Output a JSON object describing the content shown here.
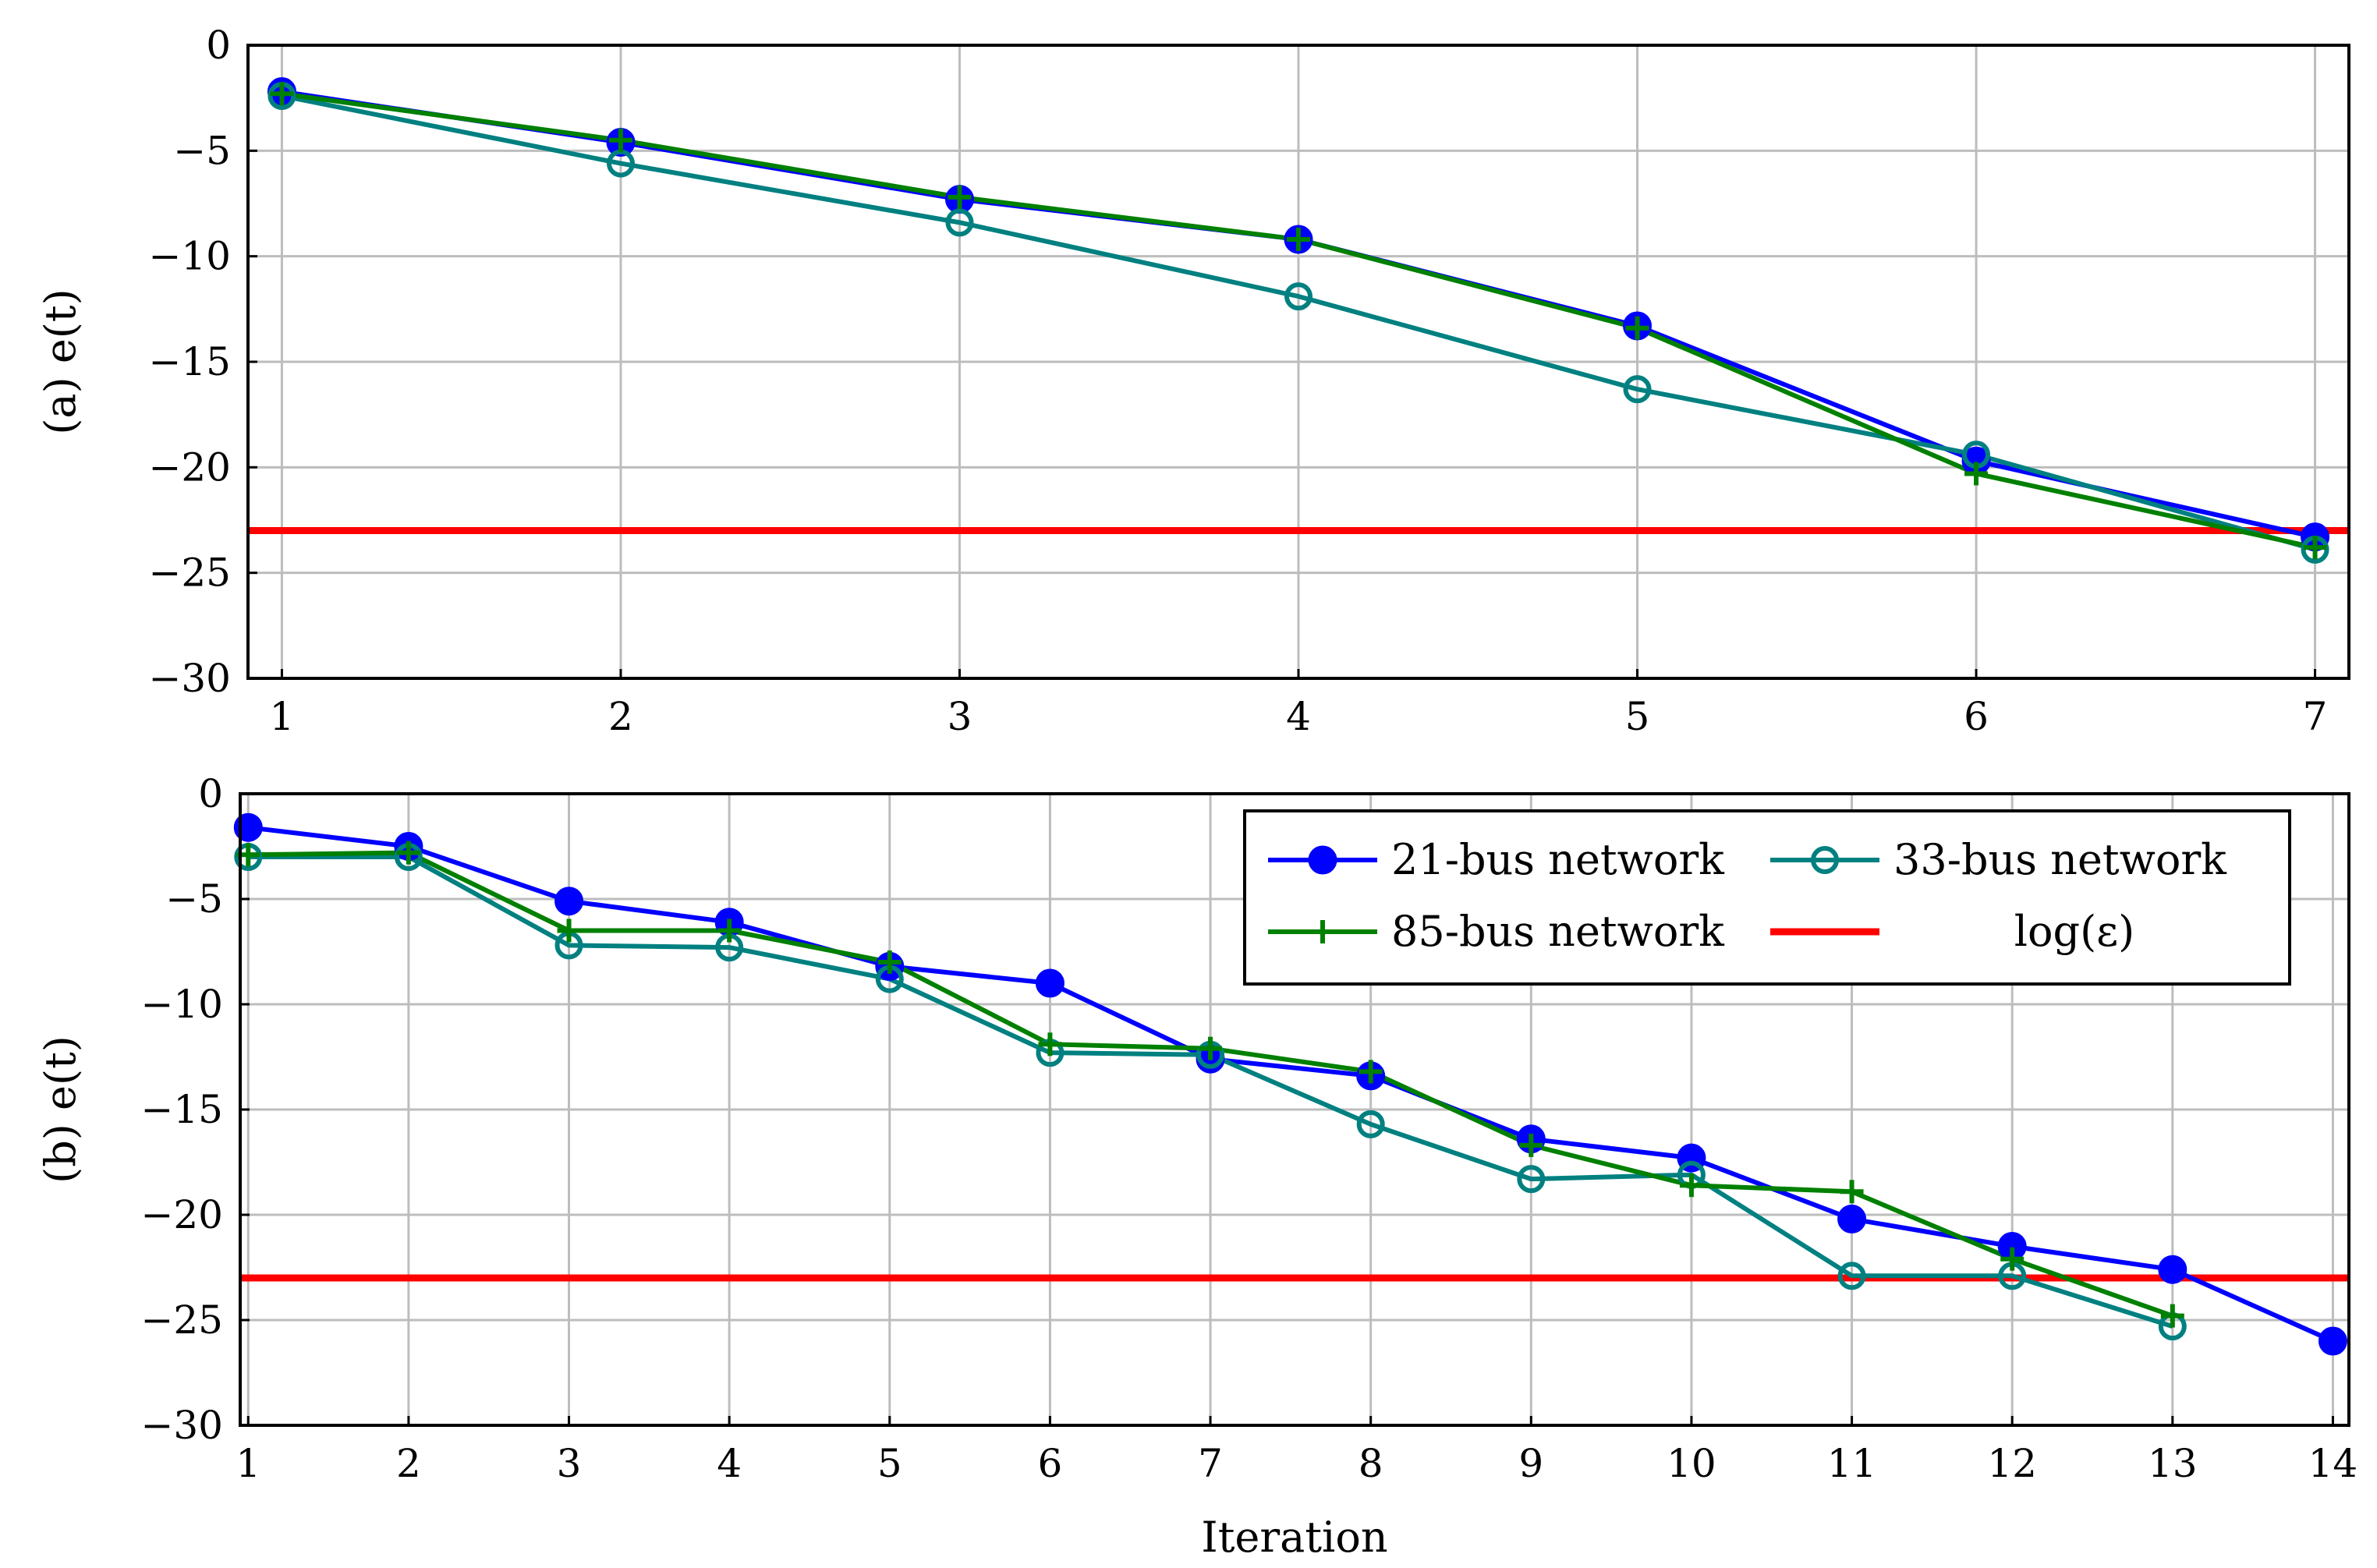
{
  "colors": {
    "bus21": "#0000ff",
    "bus33": "#008080",
    "bus85": "#008000",
    "threshold": "#ff0000",
    "grid": "#bdbdbd"
  },
  "chart_data": [
    {
      "type": "line",
      "ylabel": "(a) e(t)",
      "xlabel": "",
      "x": [
        1,
        2,
        3,
        4,
        5,
        6,
        7
      ],
      "xlim": [
        0.9,
        7.1
      ],
      "ylim": [
        -30,
        0
      ],
      "xticks": [
        "1",
        "2",
        "3",
        "4",
        "5",
        "6",
        "7"
      ],
      "yticks": [
        "0",
        "−5",
        "−10",
        "−15",
        "−20",
        "−25",
        "−30"
      ],
      "grid": true,
      "series": [
        {
          "name": "21-bus network",
          "key": "bus21",
          "marker": "filled-circle",
          "x": [
            1,
            2,
            3,
            4,
            5,
            6,
            7
          ],
          "values": [
            -2.2,
            -4.6,
            -7.3,
            -9.2,
            -13.3,
            -19.7,
            -23.3
          ]
        },
        {
          "name": "33-bus network",
          "key": "bus33",
          "marker": "open-circle",
          "x": [
            1,
            2,
            3,
            4,
            5,
            6,
            7
          ],
          "values": [
            -2.4,
            -5.6,
            -8.4,
            -11.9,
            -16.3,
            -19.4,
            -23.9
          ]
        },
        {
          "name": "85-bus network",
          "key": "bus85",
          "marker": "plus",
          "x": [
            1,
            2,
            3,
            4,
            5,
            6,
            7
          ],
          "values": [
            -2.3,
            -4.5,
            -7.2,
            -9.2,
            -13.4,
            -20.3,
            -23.8
          ]
        }
      ],
      "threshold": {
        "name": "log(ε)",
        "value": -23
      }
    },
    {
      "type": "line",
      "ylabel": "(b) e(t)",
      "xlabel": "Iteration",
      "x": [
        1,
        2,
        3,
        4,
        5,
        6,
        7,
        8,
        9,
        10,
        11,
        12,
        13,
        14
      ],
      "xlim": [
        0.95,
        14.1
      ],
      "ylim": [
        -30,
        0
      ],
      "xticks": [
        "1",
        "2",
        "3",
        "4",
        "5",
        "6",
        "7",
        "8",
        "9",
        "10",
        "11",
        "12",
        "13",
        "14"
      ],
      "yticks": [
        "0",
        "−5",
        "−10",
        "−15",
        "−20",
        "−25",
        "−30"
      ],
      "grid": true,
      "legend": {
        "placement": "top-right",
        "entries": [
          {
            "label": "21-bus network",
            "key": "bus21",
            "marker": "filled-circle"
          },
          {
            "label": "33-bus network",
            "key": "bus33",
            "marker": "open-circle"
          },
          {
            "label": "85-bus network",
            "key": "bus85",
            "marker": "plus"
          },
          {
            "label": "log(ε)",
            "key": "threshold",
            "marker": "none"
          }
        ]
      },
      "series": [
        {
          "name": "21-bus network",
          "key": "bus21",
          "marker": "filled-circle",
          "x": [
            1,
            2,
            3,
            4,
            5,
            6,
            7,
            8,
            9,
            10,
            11,
            12,
            13,
            14
          ],
          "values": [
            -1.6,
            -2.5,
            -5.1,
            -6.1,
            -8.2,
            -9.0,
            -12.6,
            -13.4,
            -16.4,
            -17.3,
            -20.2,
            -21.5,
            -22.6,
            -26.0
          ]
        },
        {
          "name": "33-bus network",
          "key": "bus33",
          "marker": "open-circle",
          "x": [
            1,
            2,
            3,
            4,
            5,
            6,
            7,
            8,
            9,
            10,
            11,
            12,
            13
          ],
          "values": [
            -3.0,
            -3.0,
            -7.2,
            -7.3,
            -8.8,
            -12.3,
            -12.4,
            -15.7,
            -18.3,
            -18.1,
            -22.9,
            -22.9,
            -25.3
          ]
        },
        {
          "name": "85-bus network",
          "key": "bus85",
          "marker": "plus",
          "x": [
            1,
            2,
            3,
            4,
            5,
            6,
            7,
            8,
            9,
            10,
            11,
            12,
            13
          ],
          "values": [
            -2.9,
            -2.8,
            -6.5,
            -6.5,
            -8.0,
            -11.9,
            -12.1,
            -13.2,
            -16.7,
            -18.6,
            -18.9,
            -22.1,
            -24.8
          ]
        }
      ],
      "threshold": {
        "name": "log(ε)",
        "value": -23
      }
    }
  ]
}
